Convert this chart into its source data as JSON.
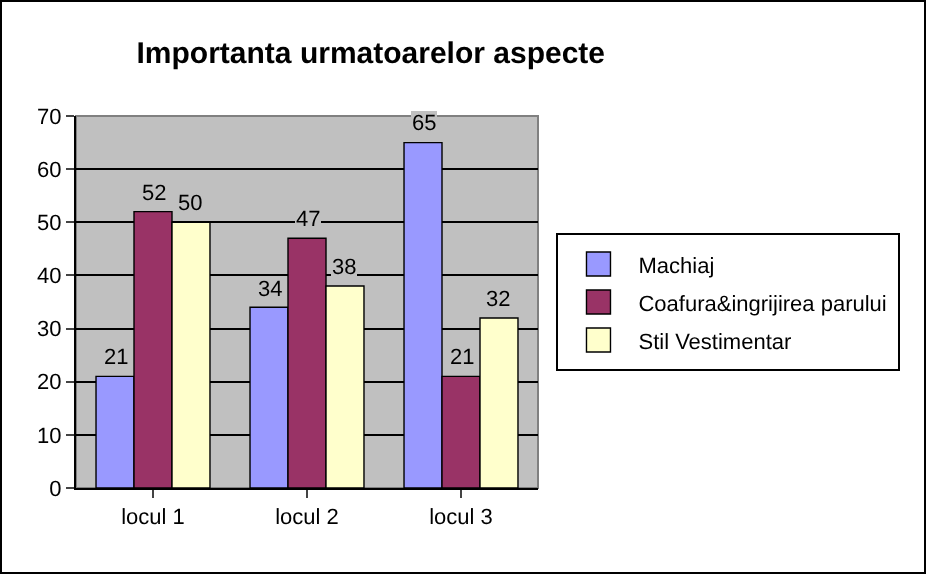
{
  "chart_data": {
    "type": "bar",
    "title": "Importanta urmatoarelor aspecte",
    "categories": [
      "locul 1",
      "locul 2",
      "locul 3"
    ],
    "series": [
      {
        "name": "Machiaj",
        "color": "#9999ff",
        "values": [
          21,
          34,
          65
        ]
      },
      {
        "name": "Coafura&ingrijirea parului",
        "color": "#993366",
        "values": [
          52,
          47,
          21
        ]
      },
      {
        "name": "Stil Vestimentar",
        "color": "#ffffcc",
        "values": [
          50,
          38,
          32
        ]
      }
    ],
    "ylim": [
      0,
      70
    ],
    "yticks": [
      0,
      10,
      20,
      30,
      40,
      50,
      60,
      70
    ],
    "grid": "y",
    "legend": "right",
    "data_labels": true
  }
}
